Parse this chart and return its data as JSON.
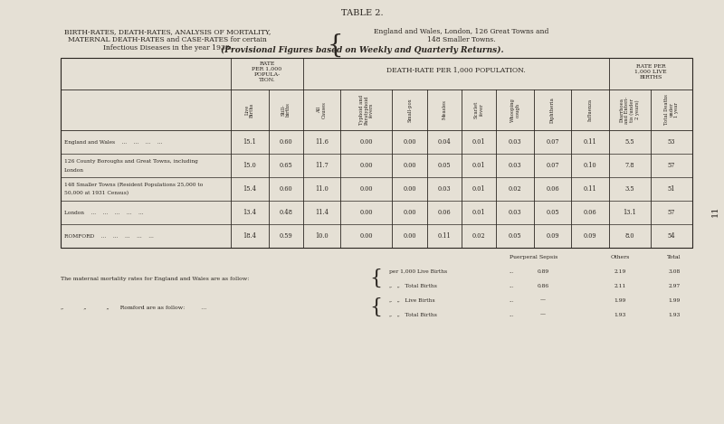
{
  "bg_color": "#e5e0d5",
  "title1": "TABLE 2.",
  "title2_left": "BIRTH-RATES, DEATH-RATES, ANALYSIS OF MORTALITY,\nMATERNAL DEATH-RATES and CASE-RATES for certain\nInfectious Diseases in the year 1938.",
  "title2_right": "England and Wales, London, 126 Great Towns and\n148 Smaller Towns.",
  "title3": "(Provisional Figures based on Weekly and Quarterly Returns).",
  "page_number": "11",
  "col_names": [
    "Live\nBirths",
    "Still-\nbirths",
    "All\nCauses",
    "Typhoid and\nParatyphoid\nfevers",
    "Small-pox",
    "Measles",
    "Scarlet\nfever",
    "Whooping\ncough",
    "Diphtheria",
    "Influenza",
    "Diarrhoea\nand Enteri-\ntis (under\n2 years)",
    "Total Deaths\nunder\n1 year"
  ],
  "rows": [
    {
      "label": "England and Wales    ...    ...    ...    ...",
      "label2": "",
      "values": [
        "15.1",
        "0.60",
        "11.6",
        "0.00",
        "0.00",
        "0.04",
        "0.01",
        "0.03",
        "0.07",
        "0.11",
        "5.5",
        "53"
      ]
    },
    {
      "label": "126 County Boroughs and Great Towns, including",
      "label2": "London",
      "values": [
        "15.0",
        "0.65",
        "11.7",
        "0.00",
        "0.00",
        "0.05",
        "0.01",
        "0.03",
        "0.07",
        "0.10",
        "7.8",
        "57"
      ]
    },
    {
      "label": "148 Smaller Towns (Resident Populations 25,000 to",
      "label2": "50,000 at 1931 Census)",
      "values": [
        "15.4",
        "0.60",
        "11.0",
        "0.00",
        "0.00",
        "0.03",
        "0.01",
        "0.02",
        "0.06",
        "0.11",
        "3.5",
        "51"
      ]
    },
    {
      "label": "London    ...    ...    ...    ...    ...",
      "label2": "",
      "values": [
        "13.4",
        "0.48",
        "11.4",
        "0.00",
        "0.00",
        "0.06",
        "0.01",
        "0.03",
        "0.05",
        "0.06",
        "13.1",
        "57"
      ]
    },
    {
      "label": "ROMFORD    ...    ...    ...    ...    ...",
      "label2": "",
      "values": [
        "18.4",
        "0.59",
        "10.0",
        "0.00",
        "0.00",
        "0.11",
        "0.02",
        "0.05",
        "0.09",
        "0.09",
        "8.0",
        "54"
      ]
    }
  ],
  "maternal_col_headers": [
    "Puerperal Sepsis",
    "Others",
    "Total"
  ],
  "maternal_rows": [
    [
      "per 1,000 Live Births",
      "...",
      "0.89",
      "2.19",
      "3.08"
    ],
    [
      "„   „   Total Births",
      "...",
      "0.86",
      "2.11",
      "2.97"
    ],
    [
      "„   „   Live Births",
      "...",
      "—",
      "1.99",
      "1.99"
    ],
    [
      "„   „   Total Births",
      "...",
      "—",
      "1.93",
      "1.93"
    ]
  ],
  "text_color": "#2a2520",
  "line_color": "#2a2520"
}
